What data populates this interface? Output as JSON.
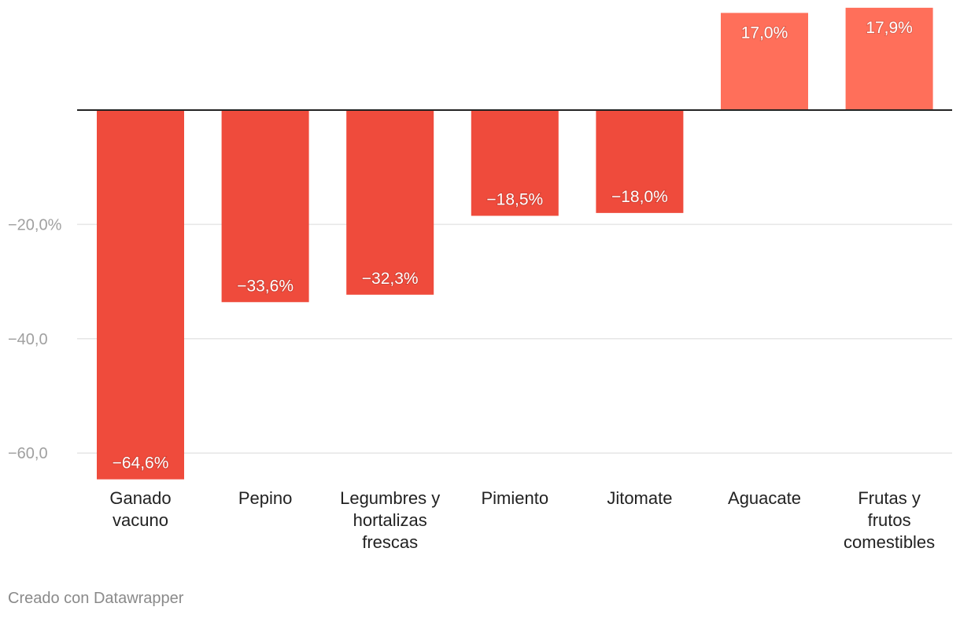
{
  "chart_data": {
    "type": "bar",
    "categories": [
      "Ganado vacuno",
      "Pepino",
      "Legumbres y hortalizas frescas",
      "Pimiento",
      "Jitomate",
      "Aguacate",
      "Frutas y frutos comestibles"
    ],
    "category_lines": [
      [
        "Ganado",
        "vacuno"
      ],
      [
        "Pepino"
      ],
      [
        "Legumbres y",
        "hortalizas",
        "frescas"
      ],
      [
        "Pimiento"
      ],
      [
        "Jitomate"
      ],
      [
        "Aguacate"
      ],
      [
        "Frutas y",
        "frutos",
        "comestibles"
      ]
    ],
    "values": [
      -64.6,
      -33.6,
      -32.3,
      -18.5,
      -18.0,
      17.0,
      17.9
    ],
    "value_labels": [
      "−64,6%",
      "−33,6%",
      "−32,3%",
      "−18,5%",
      "−18,0%",
      "17,0%",
      "17,9%"
    ],
    "y_ticks": [
      -20,
      -40,
      -60
    ],
    "y_tick_labels": [
      "−20,0%",
      "−40,0",
      "−60,0"
    ],
    "ylim": [
      -66,
      18
    ],
    "grid": true,
    "title": "",
    "xlabel": "",
    "ylabel": "",
    "colors": {
      "negative": "#ef4b3c",
      "positive": "#ff6f5a",
      "axis": "#222222",
      "grid": "#e6e6e6"
    }
  },
  "footer": {
    "credit": "Creado con Datawrapper"
  }
}
